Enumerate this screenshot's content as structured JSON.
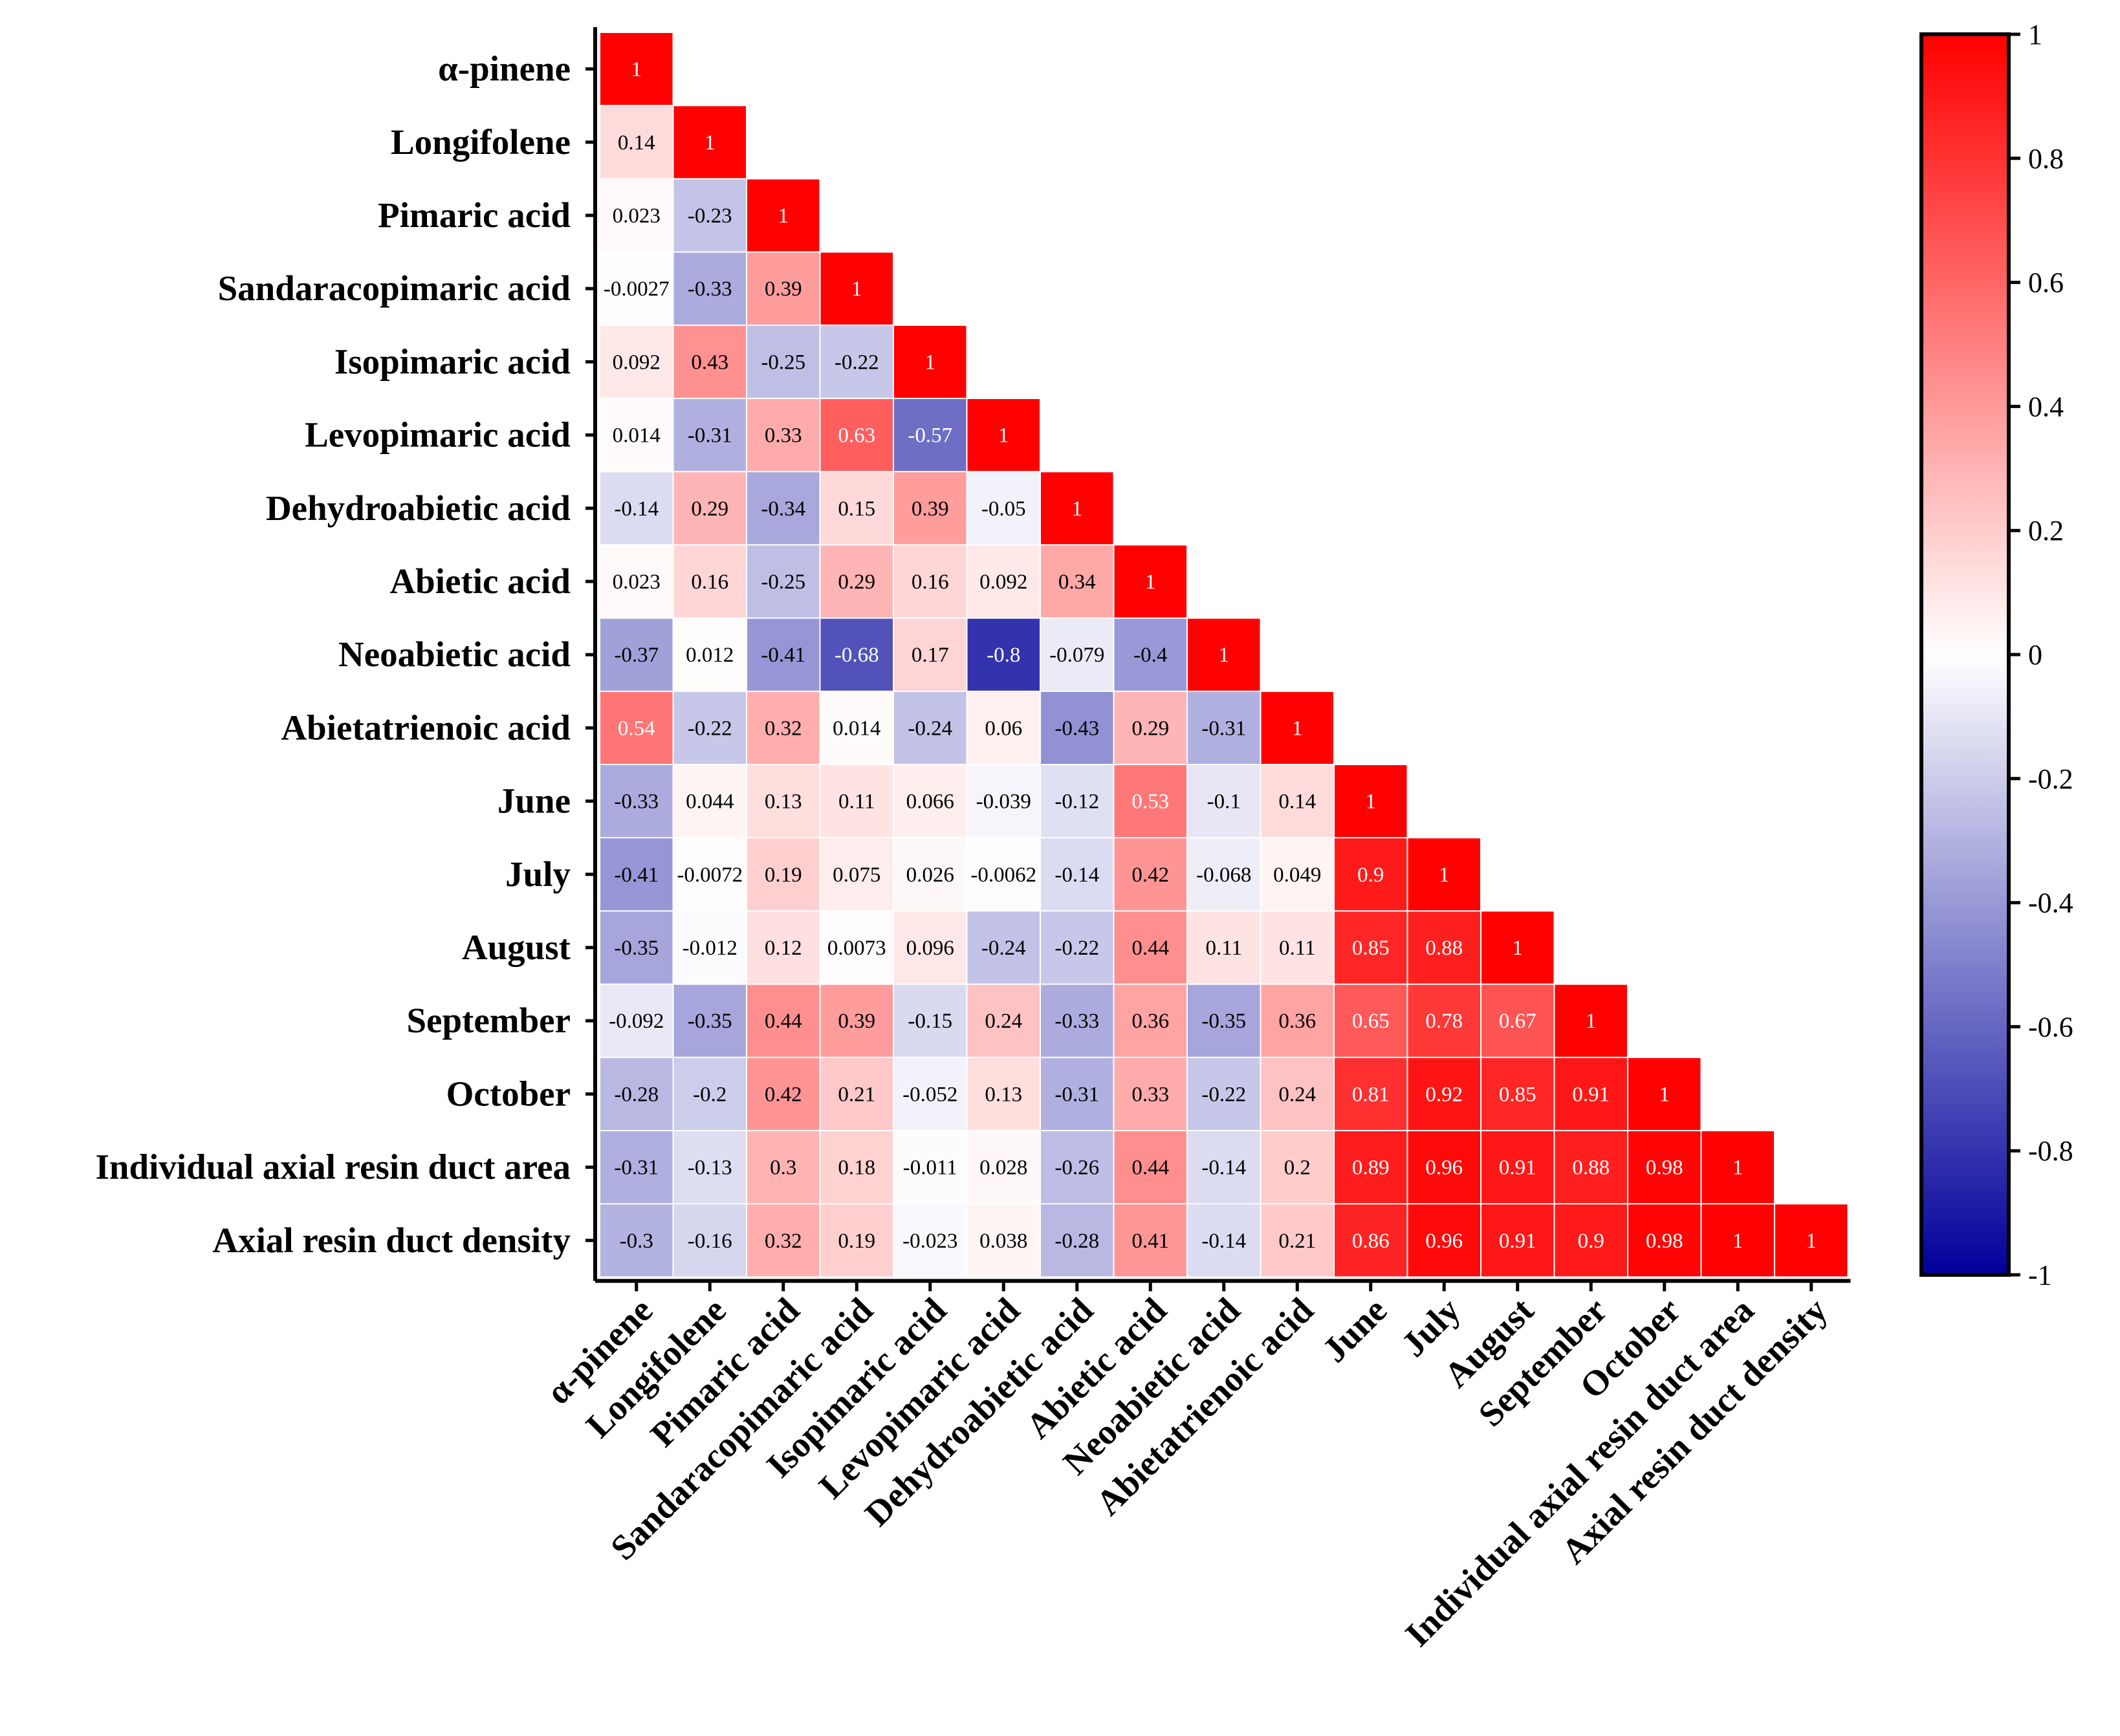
{
  "chart_data": {
    "type": "heatmap",
    "title": "",
    "variables": [
      "α-pinene",
      "Longifolene",
      "Pimaric acid",
      "Sandaracopimaric acid",
      "Isopimaric acid",
      "Levopimaric acid",
      "Dehydroabietic acid",
      "Abietic acid",
      "Neoabietic acid",
      "Abietatrienoic acid",
      "June",
      "July",
      "August",
      "September",
      "October",
      "Individual axial resin duct area",
      "Axial resin duct density"
    ],
    "matrix": [
      [
        1
      ],
      [
        0.14,
        1
      ],
      [
        0.023,
        -0.23,
        1
      ],
      [
        -0.0027,
        -0.33,
        0.39,
        1
      ],
      [
        0.092,
        0.43,
        -0.25,
        -0.22,
        1
      ],
      [
        0.014,
        -0.31,
        0.33,
        0.63,
        -0.57,
        1
      ],
      [
        -0.14,
        0.29,
        -0.34,
        0.15,
        0.39,
        -0.05,
        1
      ],
      [
        0.023,
        0.16,
        -0.25,
        0.29,
        0.16,
        0.092,
        0.34,
        1
      ],
      [
        -0.37,
        0.012,
        -0.41,
        -0.68,
        0.17,
        -0.8,
        -0.079,
        -0.4,
        1
      ],
      [
        0.54,
        -0.22,
        0.32,
        0.014,
        -0.24,
        0.06,
        -0.43,
        0.29,
        -0.31,
        1
      ],
      [
        -0.33,
        0.044,
        0.13,
        0.11,
        0.066,
        -0.039,
        -0.12,
        0.53,
        -0.1,
        0.14,
        1
      ],
      [
        -0.41,
        -0.0072,
        0.19,
        0.075,
        0.026,
        -0.0062,
        -0.14,
        0.42,
        -0.068,
        0.049,
        0.9,
        1
      ],
      [
        -0.35,
        -0.012,
        0.12,
        0.0073,
        0.096,
        -0.24,
        -0.22,
        0.44,
        0.11,
        0.11,
        0.85,
        0.88,
        1
      ],
      [
        -0.092,
        -0.35,
        0.44,
        0.39,
        -0.15,
        0.24,
        -0.33,
        0.36,
        -0.35,
        0.36,
        0.65,
        0.78,
        0.67,
        1
      ],
      [
        -0.28,
        -0.2,
        0.42,
        0.21,
        -0.052,
        0.13,
        -0.31,
        0.33,
        -0.22,
        0.24,
        0.81,
        0.92,
        0.85,
        0.91,
        1
      ],
      [
        -0.31,
        -0.13,
        0.3,
        0.18,
        -0.011,
        0.028,
        -0.26,
        0.44,
        -0.14,
        0.2,
        0.89,
        0.96,
        0.91,
        0.88,
        0.98,
        1
      ],
      [
        -0.3,
        -0.16,
        0.32,
        0.19,
        -0.023,
        0.038,
        -0.28,
        0.41,
        -0.14,
        0.21,
        0.86,
        0.96,
        0.91,
        0.9,
        0.98,
        1,
        1
      ]
    ],
    "colorscale": {
      "min": -1,
      "max": 1,
      "low_color": "#00009a",
      "mid_color": "#ffffff",
      "high_color": "#ff0000",
      "ticks": [
        "1",
        "0.8",
        "0.6",
        "0.4",
        "0.2",
        "0",
        "-0.2",
        "-0.4",
        "-0.6",
        "-0.8",
        "-1"
      ]
    },
    "legend": "colorbar right"
  }
}
